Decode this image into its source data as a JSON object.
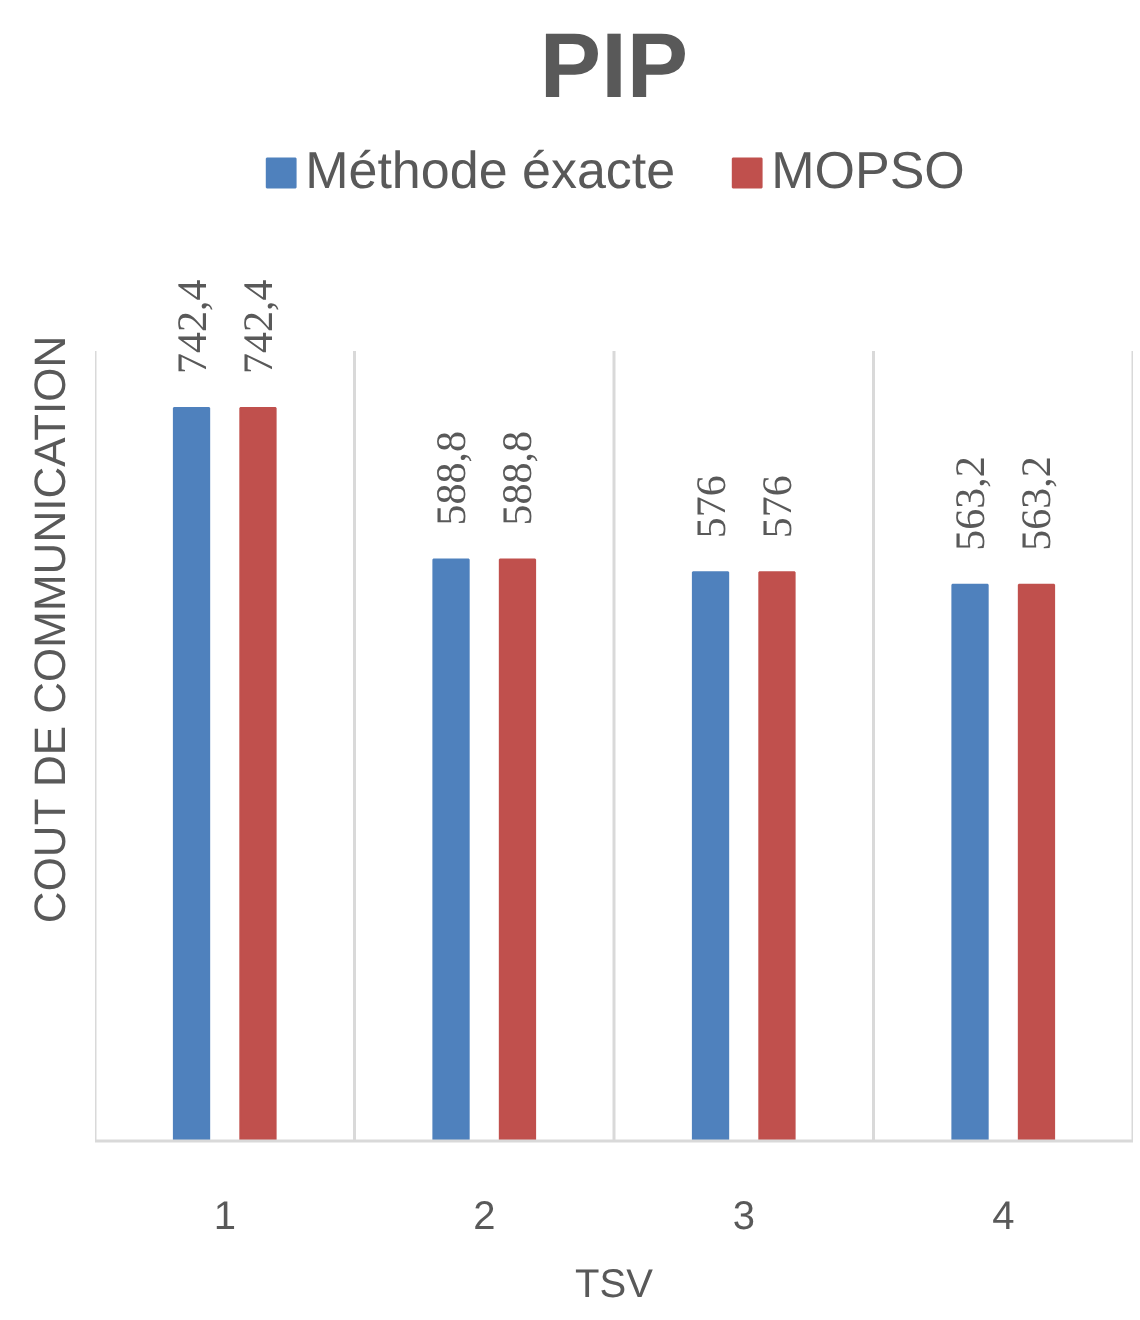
{
  "chart_data": {
    "type": "bar",
    "title": "PIP",
    "xlabel": "TSV",
    "ylabel": "COUT DE COMMUNICATION",
    "categories": [
      "1",
      "2",
      "3",
      "4"
    ],
    "series": [
      {
        "name": "Méthode éxacte",
        "color": "#4f81bd",
        "values": [
          742.4,
          588.8,
          576,
          563.2
        ],
        "value_labels": [
          "742,4",
          "588,8",
          "576",
          "563,2"
        ]
      },
      {
        "name": "MOPSO",
        "color": "#c0504d",
        "values": [
          742.4,
          588.8,
          576,
          563.2
        ],
        "value_labels": [
          "742,4",
          "588,8",
          "576",
          "563,2"
        ]
      }
    ],
    "ylim": [
      0,
      800
    ],
    "tick_labels": "x",
    "grid": "x",
    "legend": "top"
  }
}
